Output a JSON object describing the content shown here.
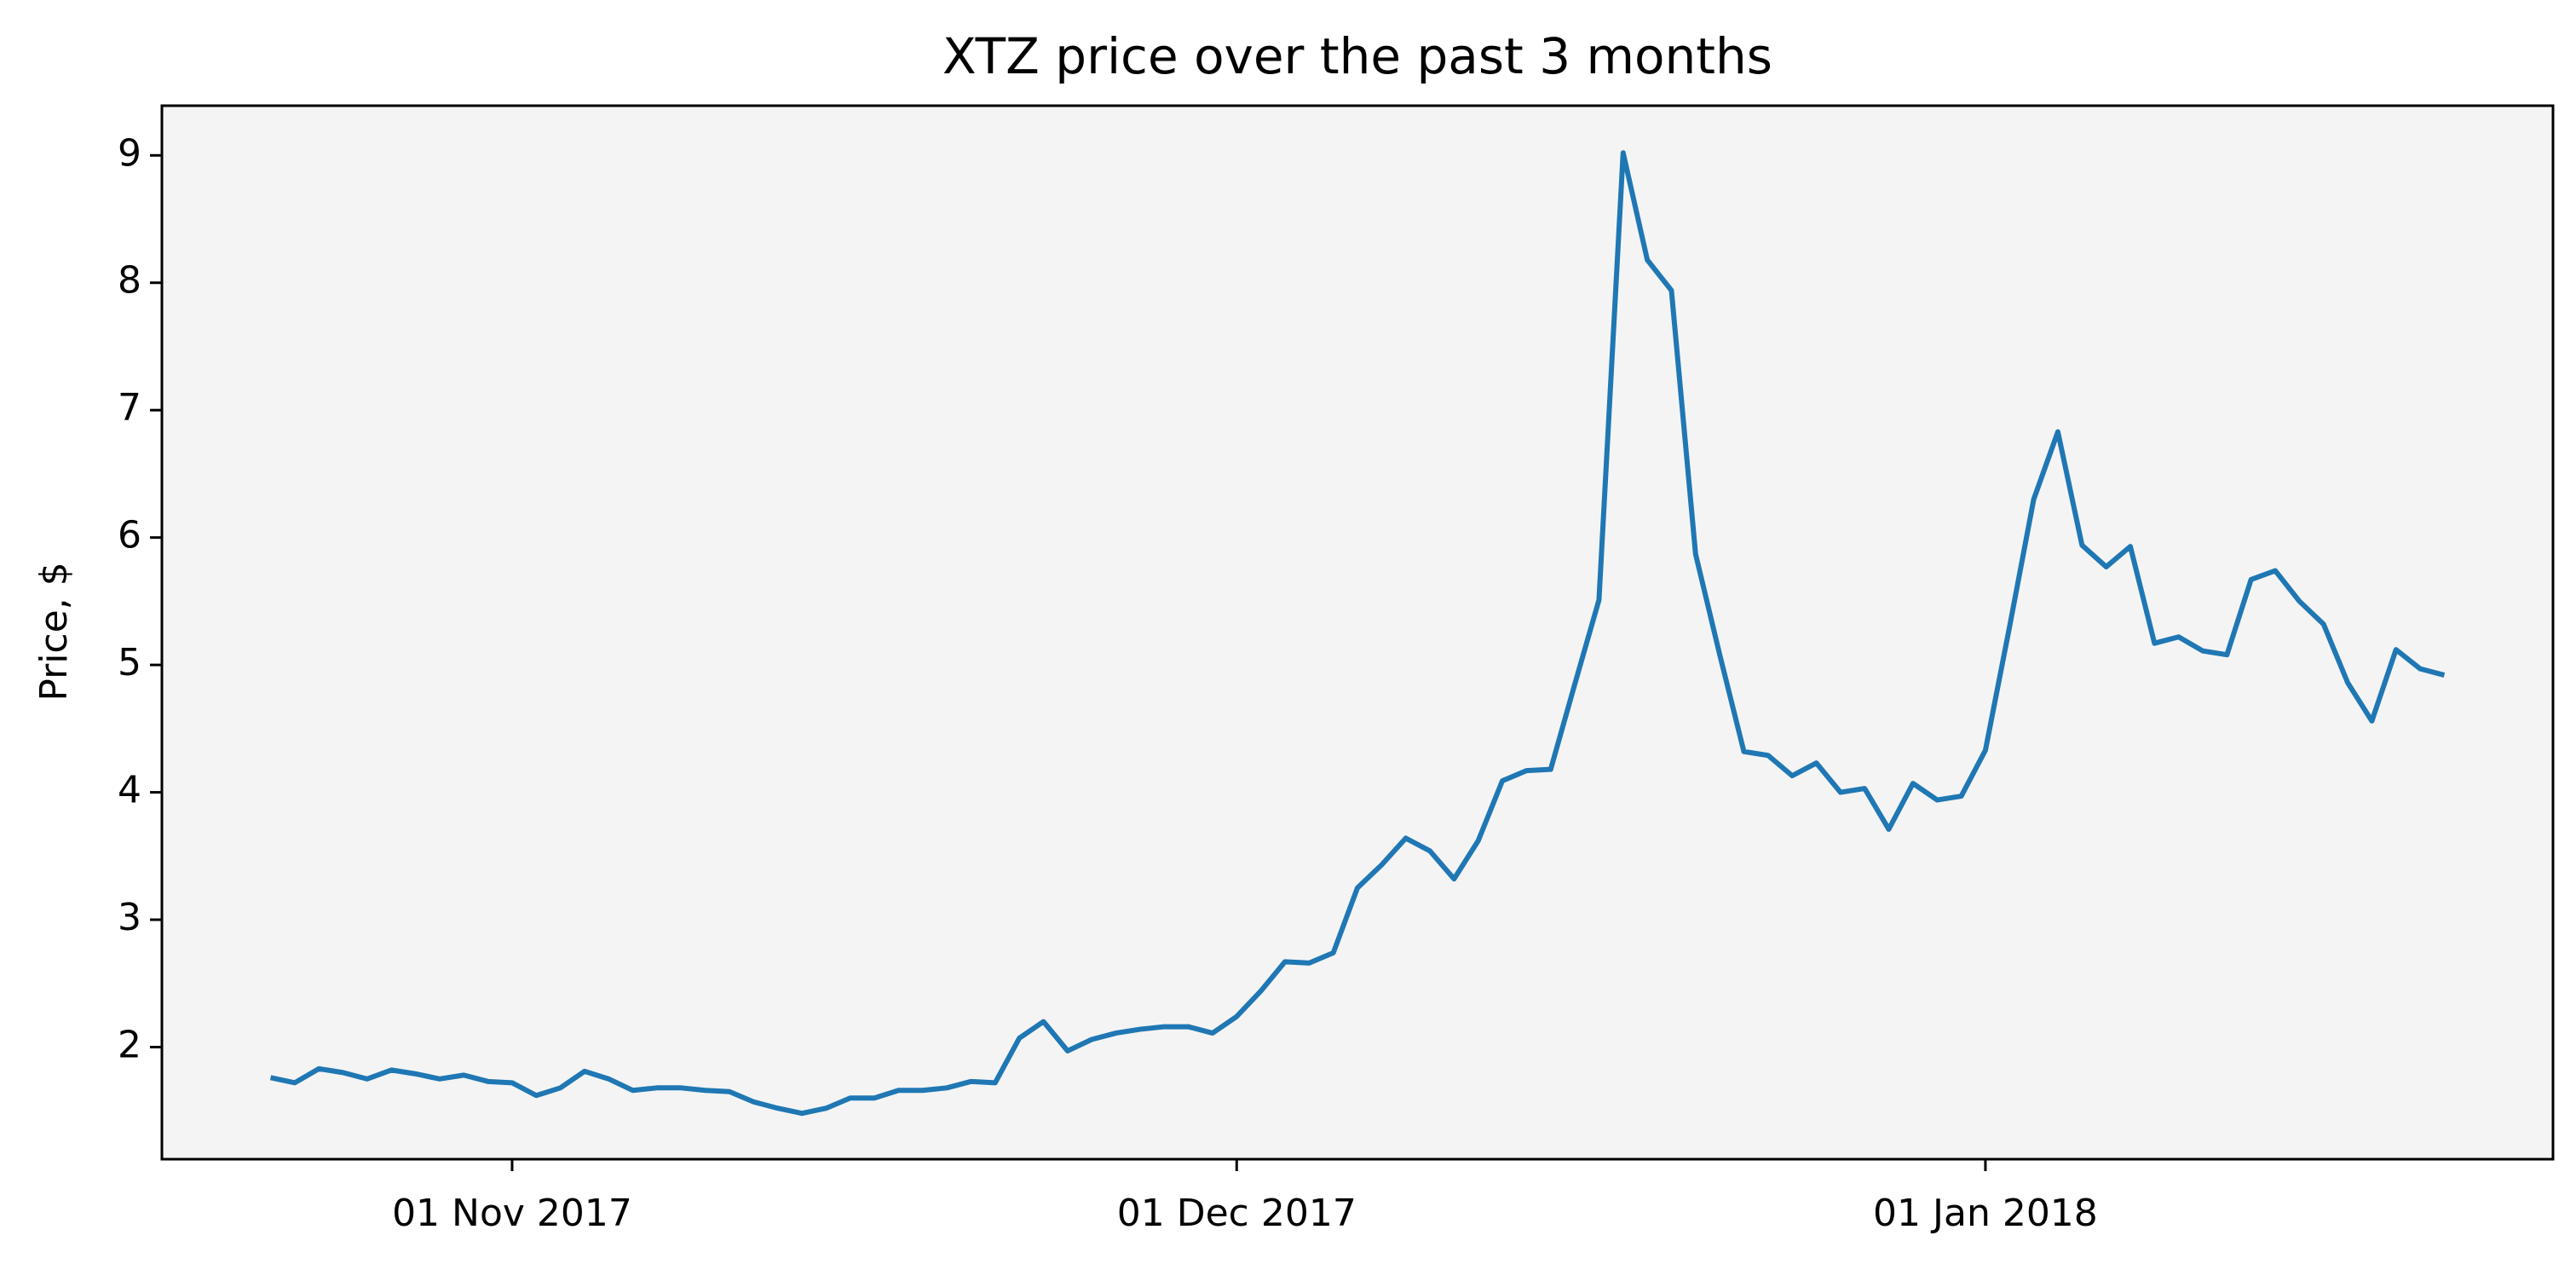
{
  "chart_data": {
    "type": "line",
    "title": "XTZ price over the past 3 months",
    "y_label": "Price, $",
    "x": [
      "2017-10-22",
      "2017-10-23",
      "2017-10-24",
      "2017-10-25",
      "2017-10-26",
      "2017-10-27",
      "2017-10-28",
      "2017-10-29",
      "2017-10-30",
      "2017-10-31",
      "2017-11-01",
      "2017-11-02",
      "2017-11-03",
      "2017-11-04",
      "2017-11-05",
      "2017-11-06",
      "2017-11-07",
      "2017-11-08",
      "2017-11-09",
      "2017-11-10",
      "2017-11-11",
      "2017-11-12",
      "2017-11-13",
      "2017-11-14",
      "2017-11-15",
      "2017-11-16",
      "2017-11-17",
      "2017-11-18",
      "2017-11-19",
      "2017-11-20",
      "2017-11-21",
      "2017-11-22",
      "2017-11-23",
      "2017-11-24",
      "2017-11-25",
      "2017-11-26",
      "2017-11-27",
      "2017-11-28",
      "2017-11-29",
      "2017-11-30",
      "2017-12-01",
      "2017-12-02",
      "2017-12-03",
      "2017-12-04",
      "2017-12-05",
      "2017-12-06",
      "2017-12-07",
      "2017-12-08",
      "2017-12-09",
      "2017-12-10",
      "2017-12-11",
      "2017-12-12",
      "2017-12-13",
      "2017-12-14",
      "2017-12-15",
      "2017-12-16",
      "2017-12-17",
      "2017-12-18",
      "2017-12-19",
      "2017-12-20",
      "2017-12-21",
      "2017-12-22",
      "2017-12-23",
      "2017-12-24",
      "2017-12-25",
      "2017-12-26",
      "2017-12-27",
      "2017-12-28",
      "2017-12-29",
      "2017-12-30",
      "2017-12-31",
      "2018-01-01",
      "2018-01-02",
      "2018-01-03",
      "2018-01-04",
      "2018-01-05",
      "2018-01-06",
      "2018-01-07",
      "2018-01-08",
      "2018-01-09",
      "2018-01-10",
      "2018-01-11",
      "2018-01-12",
      "2018-01-13",
      "2018-01-14",
      "2018-01-15",
      "2018-01-16",
      "2018-01-17",
      "2018-01-18",
      "2018-01-19",
      "2018-01-20"
    ],
    "series": [
      {
        "color": "#1f77b4",
        "values": [
          1.76,
          1.72,
          1.83,
          1.8,
          1.75,
          1.82,
          1.79,
          1.75,
          1.78,
          1.73,
          1.72,
          1.62,
          1.68,
          1.81,
          1.75,
          1.66,
          1.68,
          1.68,
          1.66,
          1.65,
          1.57,
          1.52,
          1.48,
          1.52,
          1.6,
          1.6,
          1.66,
          1.66,
          1.68,
          1.73,
          1.72,
          2.07,
          2.2,
          1.97,
          2.06,
          2.11,
          2.14,
          2.16,
          2.16,
          2.11,
          2.24,
          2.44,
          2.67,
          2.66,
          2.74,
          3.25,
          3.43,
          3.64,
          3.54,
          3.32,
          3.62,
          4.09,
          4.17,
          4.18,
          4.85,
          5.51,
          9.02,
          8.18,
          7.94,
          5.87,
          5.08,
          4.32,
          4.29,
          4.13,
          4.23,
          4.0,
          4.03,
          3.71,
          4.07,
          3.94,
          3.97,
          4.33,
          5.3,
          6.3,
          6.83,
          5.94,
          5.77,
          5.93,
          5.17,
          5.22,
          5.11,
          5.08,
          5.67,
          5.74,
          5.5,
          5.32,
          4.86,
          4.56,
          5.12,
          4.97,
          4.92
        ]
      }
    ],
    "xlim": [
      "2017-10-17T12:00:00Z",
      "2018-01-24T12:00:00Z"
    ],
    "xticks": [
      {
        "value": "2017-11-01",
        "label": "01 Nov 2017"
      },
      {
        "value": "2017-12-01",
        "label": "01 Dec 2017"
      },
      {
        "value": "2018-01-01",
        "label": "01 Jan 2018"
      }
    ],
    "ylim": [
      1.12,
      9.39
    ],
    "yticks": [
      2,
      3,
      4,
      5,
      6,
      7,
      8,
      9
    ],
    "background": "#f4f4f4"
  }
}
